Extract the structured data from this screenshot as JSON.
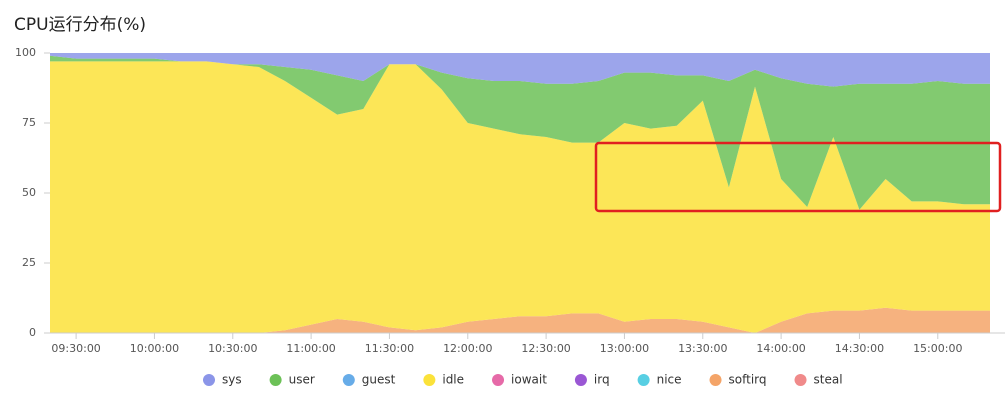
{
  "chart_data": {
    "type": "area",
    "title": "CPU运行分布(%)",
    "stacked": true,
    "categories": [
      "09:20:00",
      "09:30:00",
      "09:40:00",
      "09:50:00",
      "10:00:00",
      "10:10:00",
      "10:20:00",
      "10:30:00",
      "10:40:00",
      "10:50:00",
      "11:00:00",
      "11:10:00",
      "11:20:00",
      "11:30:00",
      "11:40:00",
      "11:50:00",
      "12:00:00",
      "12:10:00",
      "12:20:00",
      "12:30:00",
      "12:40:00",
      "12:50:00",
      "13:00:00",
      "13:10:00",
      "13:20:00",
      "13:30:00",
      "13:40:00",
      "13:50:00",
      "14:00:00",
      "14:10:00",
      "14:20:00",
      "14:30:00",
      "14:40:00",
      "14:50:00",
      "15:00:00",
      "15:10:00",
      "15:20:00"
    ],
    "xticks": [
      "09:30:00",
      "10:00:00",
      "10:30:00",
      "11:00:00",
      "11:30:00",
      "12:00:00",
      "12:30:00",
      "13:00:00",
      "13:30:00",
      "14:00:00",
      "14:30:00",
      "15:00:00"
    ],
    "ylim": [
      0,
      100
    ],
    "yticks": [
      0,
      25,
      50,
      75,
      100
    ],
    "legend": "bottom",
    "series": [
      {
        "name": "sys",
        "color": "#8b95e8",
        "values": [
          1,
          2,
          2,
          2,
          2,
          3,
          3,
          4,
          4,
          5,
          6,
          8,
          10,
          4,
          4,
          7,
          9,
          10,
          10,
          11,
          11,
          10,
          7,
          7,
          8,
          8,
          10,
          6,
          9,
          11,
          12,
          11,
          11,
          11,
          10,
          11,
          11
        ]
      },
      {
        "name": "user",
        "color": "#6cc157",
        "values": [
          2,
          1,
          1,
          1,
          1,
          0,
          0,
          0,
          1,
          5,
          10,
          14,
          10,
          0,
          0,
          6,
          16,
          17,
          19,
          19,
          21,
          22,
          18,
          20,
          18,
          9,
          38,
          6,
          36,
          44,
          18,
          45,
          34,
          42,
          43,
          43,
          43
        ]
      },
      {
        "name": "guest",
        "color": "#67ace8",
        "values": [
          0,
          0,
          0,
          0,
          0,
          0,
          0,
          0,
          0,
          0,
          0,
          0,
          0,
          0,
          0,
          0,
          0,
          0,
          0,
          0,
          0,
          0,
          0,
          0,
          0,
          0,
          0,
          0,
          0,
          0,
          0,
          0,
          0,
          0,
          0,
          0,
          0
        ]
      },
      {
        "name": "idle",
        "color": "#fbe23a",
        "values": [
          97,
          97,
          97,
          97,
          97,
          97,
          97,
          96,
          95,
          89,
          81,
          73,
          76,
          94,
          95,
          85,
          71,
          68,
          65,
          64,
          61,
          61,
          71,
          68,
          69,
          79,
          50,
          88,
          51,
          38,
          62,
          36,
          46,
          39,
          39,
          38,
          38
        ]
      },
      {
        "name": "iowait",
        "color": "#e66aa8",
        "values": [
          0,
          0,
          0,
          0,
          0,
          0,
          0,
          0,
          0,
          0,
          0,
          0,
          0,
          0,
          0,
          0,
          0,
          0,
          0,
          0,
          0,
          0,
          0,
          0,
          0,
          0,
          0,
          0,
          0,
          0,
          0,
          0,
          0,
          0,
          0,
          0,
          0
        ]
      },
      {
        "name": "irq",
        "color": "#9a57d4",
        "values": [
          0,
          0,
          0,
          0,
          0,
          0,
          0,
          0,
          0,
          0,
          0,
          0,
          0,
          0,
          0,
          0,
          0,
          0,
          0,
          0,
          0,
          0,
          0,
          0,
          0,
          0,
          0,
          0,
          0,
          0,
          0,
          0,
          0,
          0,
          0,
          0,
          0
        ]
      },
      {
        "name": "nice",
        "color": "#58cfe3",
        "values": [
          0,
          0,
          0,
          0,
          0,
          0,
          0,
          0,
          0,
          0,
          0,
          0,
          0,
          0,
          0,
          0,
          0,
          0,
          0,
          0,
          0,
          0,
          0,
          0,
          0,
          0,
          0,
          0,
          0,
          0,
          0,
          0,
          0,
          0,
          0,
          0,
          0
        ]
      },
      {
        "name": "softirq",
        "color": "#f4a468",
        "values": [
          0,
          0,
          0,
          0,
          0,
          0,
          0,
          0,
          0,
          1,
          3,
          5,
          4,
          2,
          1,
          2,
          4,
          5,
          6,
          6,
          7,
          7,
          4,
          5,
          5,
          4,
          2,
          0,
          4,
          7,
          8,
          8,
          9,
          8,
          8,
          8,
          8
        ]
      },
      {
        "name": "steal",
        "color": "#f08a8a",
        "values": [
          0,
          0,
          0,
          0,
          0,
          0,
          0,
          0,
          0,
          0,
          0,
          0,
          0,
          0,
          0,
          0,
          0,
          0,
          0,
          0,
          0,
          0,
          0,
          0,
          0,
          0,
          0,
          0,
          0,
          0,
          0,
          0,
          0,
          0,
          0,
          0,
          0
        ]
      }
    ]
  }
}
